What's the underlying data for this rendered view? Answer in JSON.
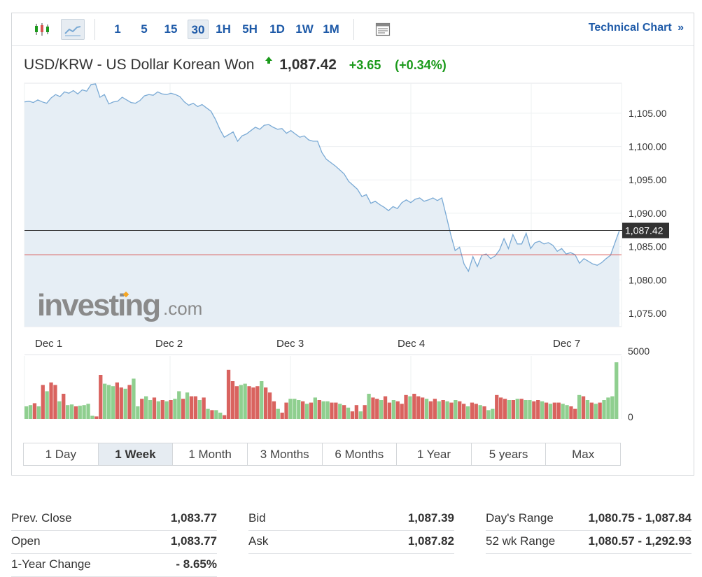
{
  "toolbar": {
    "intervals": [
      "1",
      "5",
      "15",
      "30",
      "1H",
      "5H",
      "1D",
      "1W",
      "1M"
    ],
    "selected_interval": "30",
    "technical_chart": "Technical Chart",
    "technical_chart_arrow": "»"
  },
  "header": {
    "title": "USD/KRW - US Dollar Korean Won",
    "price": "1,087.42",
    "change": "+3.65",
    "change_pct": "(+0.34%)"
  },
  "watermark": {
    "brand": "investing",
    "suffix": ".com"
  },
  "chart_data": {
    "type": "area",
    "current_price_label": "1,087.42",
    "current_price": 1087.42,
    "prev_close": 1083.77,
    "ylim": [
      1073,
      1109.5
    ],
    "yticks": [
      1105,
      1100,
      1095,
      1090,
      1085,
      1080,
      1075
    ],
    "ytick_labels": [
      "1,105.00",
      "1,100.00",
      "1,095.00",
      "1,090.00",
      "1,085.00",
      "1,080.00",
      "1,075.00"
    ],
    "x_labels": [
      "Dec 1",
      "Dec 2",
      "Dec 3",
      "Dec 4",
      "Dec 7"
    ],
    "series": [
      {
        "values": [
          1106.7,
          1106.8,
          1106.6,
          1107.0,
          1106.7,
          1106.5,
          1107.3,
          1107.8,
          1107.5,
          1108.2,
          1108.0,
          1108.4,
          1107.9,
          1108.5,
          1108.3,
          1109.3,
          1109.4,
          1107.4,
          1107.8,
          1106.4,
          1106.7,
          1106.8,
          1107.4,
          1107.0,
          1106.6,
          1106.5,
          1106.9,
          1107.6,
          1107.8,
          1107.7,
          1108.2,
          1107.9,
          1107.8,
          1108.0,
          1107.8,
          1107.5,
          1106.7,
          1106.2,
          1106.5,
          1106.0,
          1106.3,
          1105.8,
          1105.3,
          1104.1,
          1102.6,
          1101.4,
          1101.8,
          1102.2,
          1100.8,
          1101.6,
          1101.9,
          1102.4,
          1102.9,
          1102.6,
          1103.2,
          1103.3,
          1102.9,
          1102.6,
          1102.7,
          1102.0,
          1102.4,
          1101.9,
          1101.4,
          1101.6,
          1101.0,
          1100.8,
          1100.8,
          1099.1,
          1098.1,
          1097.6,
          1097.1,
          1096.5,
          1095.9,
          1094.8,
          1094.2,
          1093.6,
          1092.5,
          1092.8,
          1091.5,
          1091.8,
          1091.3,
          1090.9,
          1090.4,
          1091.0,
          1090.7,
          1091.6,
          1092.0,
          1091.6,
          1092.1,
          1092.3,
          1091.8,
          1092.0,
          1092.3,
          1091.9,
          1092.3,
          1089.6,
          1086.8,
          1084.4,
          1084.9,
          1082.4,
          1081.3,
          1083.5,
          1082.0,
          1083.7,
          1083.9,
          1083.2,
          1083.6,
          1084.5,
          1086.2,
          1084.7,
          1086.8,
          1085.4,
          1085.4,
          1087.0,
          1084.7,
          1085.6,
          1085.8,
          1085.4,
          1085.6,
          1085.2,
          1084.3,
          1084.7,
          1083.9,
          1084.1,
          1083.8,
          1082.5,
          1083.2,
          1082.8,
          1082.4,
          1082.2,
          1082.6,
          1083.2,
          1083.7,
          1085.6,
          1087.42
        ]
      }
    ],
    "volume": {
      "axis_labels": [
        "5000",
        "0"
      ],
      "ymax": 5000,
      "values": [
        1000,
        1100,
        1250,
        1000,
        2700,
        2200,
        2900,
        2700,
        1400,
        2000,
        1100,
        1150,
        1000,
        1050,
        1100,
        1200,
        250,
        200,
        3500,
        2800,
        2700,
        2600,
        2900,
        2500,
        2400,
        2700,
        3200,
        1000,
        1600,
        1800,
        1500,
        1700,
        1400,
        1500,
        1400,
        1500,
        1600,
        2200,
        1600,
        2100,
        1800,
        1800,
        1500,
        1700,
        800,
        700,
        700,
        500,
        300,
        3900,
        3000,
        2600,
        2700,
        2800,
        2600,
        2500,
        2600,
        3000,
        2500,
        2100,
        1400,
        800,
        500,
        1300,
        1600,
        1600,
        1500,
        1400,
        1200,
        1300,
        1700,
        1500,
        1400,
        1400,
        1300,
        1300,
        1200,
        1100,
        900,
        600,
        1100,
        600,
        1100,
        2000,
        1700,
        1600,
        1500,
        1800,
        1300,
        1500,
        1400,
        1200,
        1900,
        1800,
        2000,
        1800,
        1700,
        1600,
        1400,
        1600,
        1400,
        1500,
        1400,
        1300,
        1500,
        1400,
        1200,
        1000,
        1300,
        1200,
        1100,
        1000,
        700,
        800,
        1900,
        1700,
        1600,
        1500,
        1500,
        1600,
        1600,
        1500,
        1500,
        1400,
        1500,
        1400,
        1300,
        1200,
        1300,
        1300,
        1200,
        1100,
        1000,
        800,
        1900,
        1800,
        1500,
        1300,
        1200,
        1300,
        1500,
        1700,
        1800,
        4500
      ],
      "colors": [
        "g",
        "g",
        "r",
        "g",
        "r",
        "g",
        "r",
        "r",
        "g",
        "r",
        "g",
        "g",
        "r",
        "g",
        "g",
        "g",
        "g",
        "r",
        "r",
        "g",
        "g",
        "g",
        "r",
        "r",
        "g",
        "r",
        "g",
        "g",
        "r",
        "g",
        "g",
        "r",
        "g",
        "r",
        "g",
        "r",
        "g",
        "g",
        "r",
        "g",
        "r",
        "r",
        "g",
        "r",
        "g",
        "r",
        "g",
        "g",
        "r",
        "r",
        "r",
        "r",
        "g",
        "g",
        "r",
        "r",
        "r",
        "g",
        "r",
        "r",
        "r",
        "g",
        "r",
        "r",
        "g",
        "g",
        "g",
        "r",
        "g",
        "r",
        "g",
        "r",
        "g",
        "g",
        "r",
        "r",
        "g",
        "r",
        "g",
        "r",
        "r",
        "g",
        "r",
        "g",
        "r",
        "r",
        "g",
        "r",
        "r",
        "g",
        "r",
        "r",
        "r",
        "g",
        "r",
        "r",
        "r",
        "g",
        "r",
        "r",
        "g",
        "r",
        "g",
        "r",
        "g",
        "r",
        "r",
        "g",
        "r",
        "r",
        "g",
        "r",
        "g",
        "g",
        "r",
        "r",
        "r",
        "g",
        "r",
        "g",
        "r",
        "g",
        "g",
        "r",
        "r",
        "g",
        "r",
        "g",
        "r",
        "r",
        "g",
        "g",
        "r",
        "r",
        "g",
        "r",
        "g",
        "r",
        "g",
        "r",
        "g",
        "g",
        "g",
        "g",
        "g"
      ],
      "green": "#8fcf8f",
      "red": "#d9635f"
    },
    "colors": {
      "line": "#7aaad5",
      "area": "#e6eef5",
      "current_line": "#333333",
      "prev_close_line": "#d9534f",
      "label_bg": "#333333"
    }
  },
  "range_tabs": [
    "1 Day",
    "1 Week",
    "1 Month",
    "3 Months",
    "6 Months",
    "1 Year",
    "5 years",
    "Max"
  ],
  "selected_range": "1 Week",
  "stats": [
    [
      {
        "label": "Prev. Close",
        "value": "1,083.77"
      },
      {
        "label": "Open",
        "value": "1,083.77"
      },
      {
        "label": "1-Year Change",
        "value": "- 8.65%"
      }
    ],
    [
      {
        "label": "Bid",
        "value": "1,087.39"
      },
      {
        "label": "Ask",
        "value": "1,087.82"
      }
    ],
    [
      {
        "label": "Day's Range",
        "value": "1,080.75 - 1,087.84"
      },
      {
        "label": "52 wk Range",
        "value": "1,080.57 - 1,292.93"
      }
    ]
  ]
}
